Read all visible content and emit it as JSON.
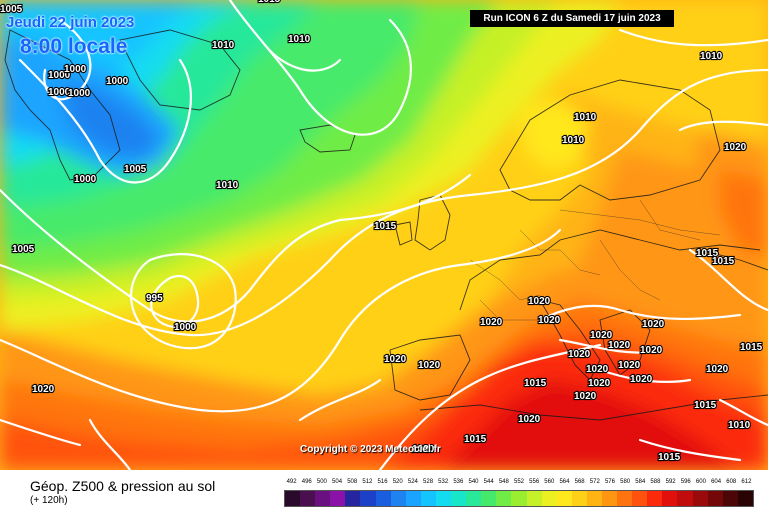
{
  "header": {
    "date_line": "Jeudi 22 juin 2023",
    "time_line": "8:00 locale",
    "run_info": "Run ICON 6 Z du Samedi 17 juin 2023"
  },
  "copyright": "Copyright © 2023 Meteociel.fr",
  "legend": {
    "title": "Géop. Z500 & pression au sol",
    "subtitle": "(+ 120h)",
    "scale_values": [
      "492",
      "496",
      "500",
      "504",
      "508",
      "512",
      "516",
      "520",
      "524",
      "528",
      "532",
      "536",
      "540",
      "544",
      "548",
      "552",
      "556",
      "560",
      "564",
      "568",
      "572",
      "576",
      "580",
      "584",
      "588",
      "592",
      "596",
      "600",
      "604",
      "608",
      "612"
    ],
    "scale_colors": [
      "#2a0a2a",
      "#4a0f4f",
      "#6b1080",
      "#8a12a8",
      "#2525a0",
      "#1c40c8",
      "#1a5ee0",
      "#1e82f0",
      "#1aa4ff",
      "#14c4ff",
      "#14dcf0",
      "#18e6c8",
      "#28e89a",
      "#46ea6a",
      "#70ec46",
      "#9aee30",
      "#c6f028",
      "#ecf020",
      "#ffe81c",
      "#ffd018",
      "#ffb414",
      "#ff9612",
      "#ff7410",
      "#ff520e",
      "#fb2a0c",
      "#e2100c",
      "#c00c0c",
      "#9a0a0a",
      "#740808",
      "#4c0606",
      "#280404"
    ]
  },
  "isobars": [
    "1005",
    "1015",
    "1010",
    "1010",
    "1000",
    "1000",
    "1000",
    "1000",
    "1000",
    "1005",
    "1000",
    "1010",
    "1005",
    "995",
    "1000",
    "1015",
    "1010",
    "1010",
    "1010",
    "1020",
    "1015",
    "1015",
    "1020",
    "1020",
    "1020",
    "1020",
    "1020",
    "1020",
    "1020",
    "1020",
    "1020",
    "1020",
    "1020",
    "1020",
    "1020",
    "1020",
    "1020",
    "1020",
    "1015",
    "1015",
    "1020",
    "1015",
    "1015",
    "1010",
    "1015",
    "1020",
    "1020"
  ]
}
